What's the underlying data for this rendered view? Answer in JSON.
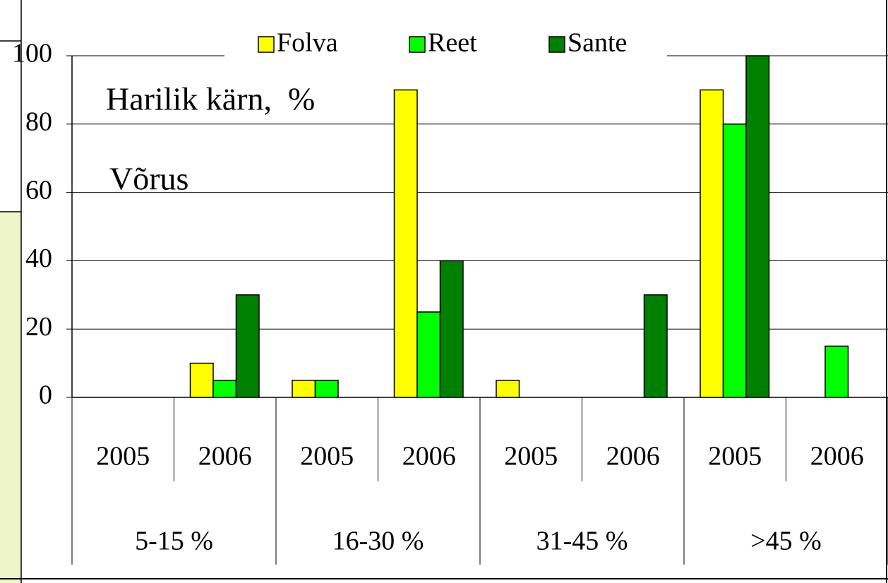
{
  "chart_data": {
    "type": "bar",
    "title": "Harilik kärn,  %",
    "subtitle": "Võrus",
    "categories": [
      "2005",
      "2006",
      "2005",
      "2006",
      "2005",
      "2006",
      "2005",
      "2006"
    ],
    "groups": [
      "5-15 %",
      "16-30 %",
      "31-45 %",
      ">45 %"
    ],
    "series": [
      {
        "name": "Folva",
        "color": "#ffff00",
        "values": [
          0,
          10,
          5,
          90,
          5,
          0,
          90,
          0
        ]
      },
      {
        "name": "Reet",
        "color": "#00ff00",
        "values": [
          0,
          5,
          5,
          25,
          0,
          0,
          80,
          15
        ]
      },
      {
        "name": "Sante",
        "color": "#008000",
        "values": [
          0,
          30,
          0,
          40,
          0,
          30,
          100,
          0
        ]
      }
    ],
    "ylim": [
      0,
      100
    ],
    "yticks": [
      0,
      20,
      40,
      60,
      80,
      100
    ],
    "grid": true,
    "legend": "top"
  }
}
